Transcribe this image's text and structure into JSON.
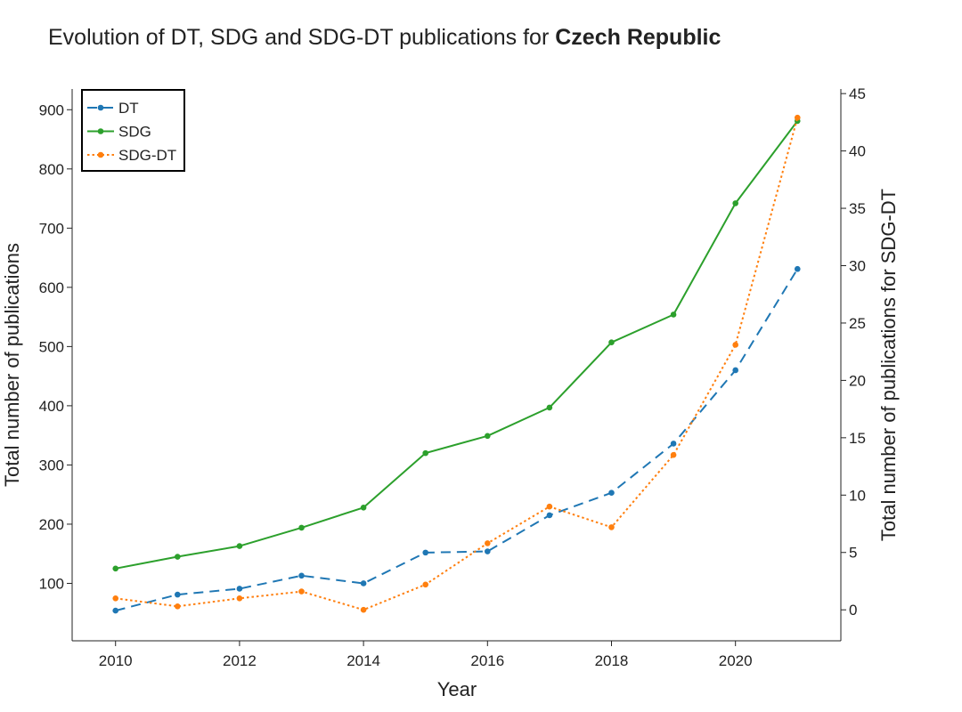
{
  "chart_data": {
    "type": "line",
    "title": {
      "prefix": "Evolution of DT, SDG and SDG-DT publications for ",
      "country": "Czech Republic"
    },
    "xlabel": "Year",
    "ylabel": "Total number of publications",
    "y2label": "Total number of publications for SDG-DT",
    "x": [
      2010,
      2011,
      2012,
      2013,
      2014,
      2015,
      2016,
      2017,
      2018,
      2019,
      2020,
      2021
    ],
    "xticks": [
      2010,
      2012,
      2014,
      2016,
      2018,
      2020
    ],
    "xlim": [
      2009.3,
      2021.7
    ],
    "ylim": [
      3,
      935
    ],
    "yticks": [
      100,
      200,
      300,
      400,
      500,
      600,
      700,
      800,
      900
    ],
    "y2lim": [
      -2.7,
      45.4
    ],
    "y2ticks": [
      0,
      5,
      10,
      15,
      20,
      25,
      30,
      35,
      40,
      45
    ],
    "legend_position": "top-left",
    "grid": false,
    "series": [
      {
        "name": "DT",
        "axis": "left",
        "style": "dashed",
        "color": "#1f77b4",
        "values": [
          54,
          81,
          91,
          113,
          100,
          152,
          154,
          215,
          253,
          336,
          460,
          631
        ]
      },
      {
        "name": "SDG",
        "axis": "left",
        "style": "solid",
        "color": "#2ca02c",
        "values": [
          125,
          145,
          163,
          194,
          228,
          320,
          349,
          397,
          507,
          554,
          742,
          881
        ]
      },
      {
        "name": "SDG-DT",
        "axis": "right",
        "style": "dotted",
        "color": "#ff7f0e",
        "values": [
          1,
          0.3,
          1,
          1.6,
          0,
          2.2,
          5.8,
          9,
          7.2,
          13.5,
          23.1,
          42.9
        ]
      }
    ]
  }
}
